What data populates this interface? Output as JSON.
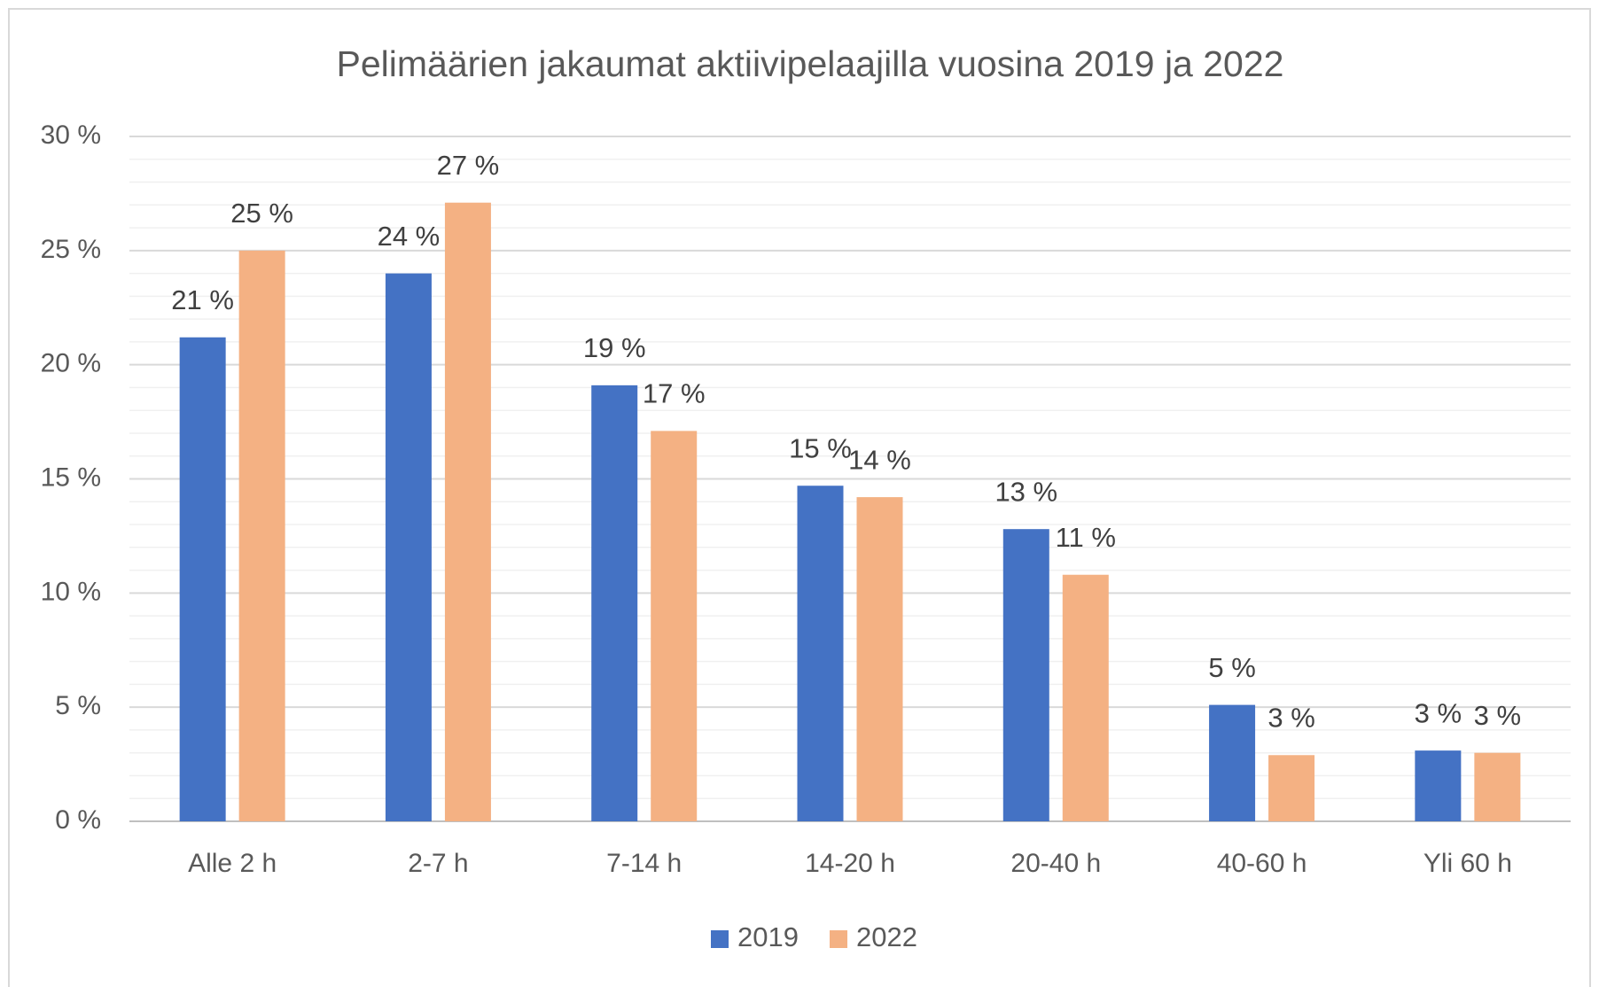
{
  "chart_data": {
    "type": "bar",
    "title": "Pelimäärien jakaumat aktiivipelaajilla vuosina 2019 ja 2022",
    "categories": [
      "Alle 2 h",
      "2-7 h",
      "7-14 h",
      "14-20 h",
      "20-40 h",
      "40-60 h",
      "Yli 60 h"
    ],
    "series": [
      {
        "name": "2019",
        "color": "#4472c4",
        "values": [
          21.2,
          24.0,
          19.1,
          14.7,
          12.8,
          5.1,
          3.1
        ],
        "value_labels": [
          "21 %",
          "24 %",
          "19 %",
          "15 %",
          "13 %",
          "5 %",
          "3 %"
        ]
      },
      {
        "name": "2022",
        "color": "#f4b183",
        "values": [
          25.0,
          27.1,
          17.1,
          14.2,
          10.8,
          2.9,
          3.0
        ],
        "value_labels": [
          "25 %",
          "27 %",
          "17 %",
          "14 %",
          "11 %",
          "3 %",
          "3 %"
        ]
      }
    ],
    "ylim": [
      0,
      30
    ],
    "yticks": [
      {
        "value": 0,
        "label": "0 %"
      },
      {
        "value": 5,
        "label": "5 %"
      },
      {
        "value": 10,
        "label": "10 %"
      },
      {
        "value": 15,
        "label": "15 %"
      },
      {
        "value": 20,
        "label": "20 %"
      },
      {
        "value": 25,
        "label": "25 %"
      },
      {
        "value": 30,
        "label": "30 %"
      }
    ],
    "minor_yticks": [
      1,
      2,
      3,
      4,
      6,
      7,
      8,
      9,
      11,
      12,
      13,
      14,
      16,
      17,
      18,
      19,
      21,
      22,
      23,
      24,
      26,
      27,
      28,
      29
    ],
    "grid": true,
    "legend": "bottom"
  }
}
